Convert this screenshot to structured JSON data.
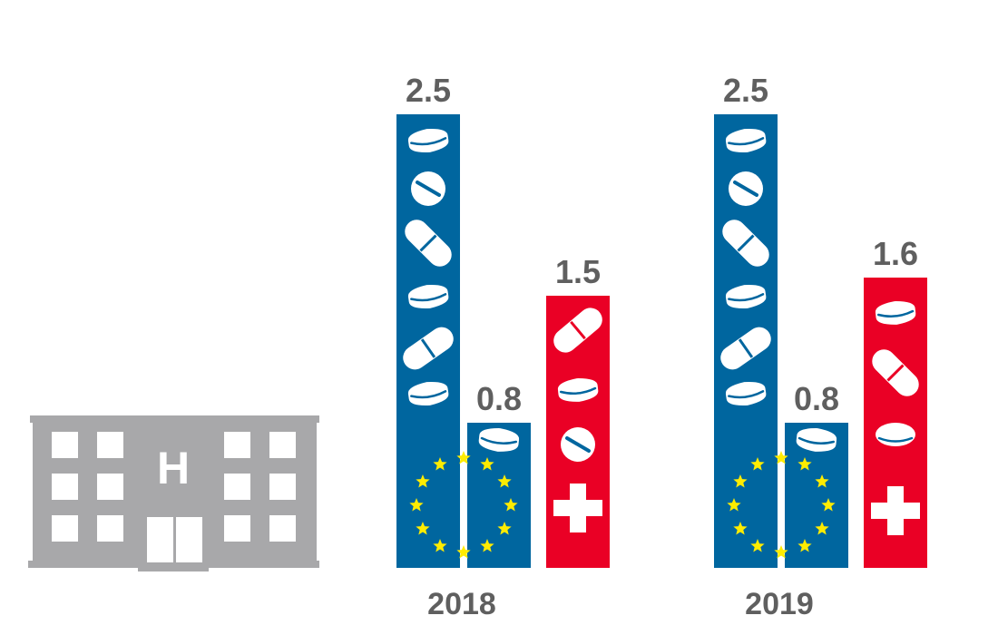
{
  "chart_data": {
    "type": "bar",
    "categories": [
      "2018",
      "2019"
    ],
    "series": [
      {
        "values": [
          2.5,
          2.5
        ]
      },
      {
        "values": [
          0.8,
          0.8
        ]
      },
      {
        "values": [
          1.5,
          1.6
        ]
      }
    ],
    "value_labels": [
      [
        "2.5",
        "0.8",
        "1.5"
      ],
      [
        "2.5",
        "0.8",
        "1.6"
      ]
    ],
    "colors": [
      "#00669f",
      "#00669f",
      "#ea0025"
    ],
    "icon_names": [
      "hospital-icon",
      "pill-icon",
      "eu-flag-icon",
      "swiss-cross-icon"
    ],
    "hospital_letter": "H",
    "ylim": [
      0,
      2.5
    ]
  }
}
